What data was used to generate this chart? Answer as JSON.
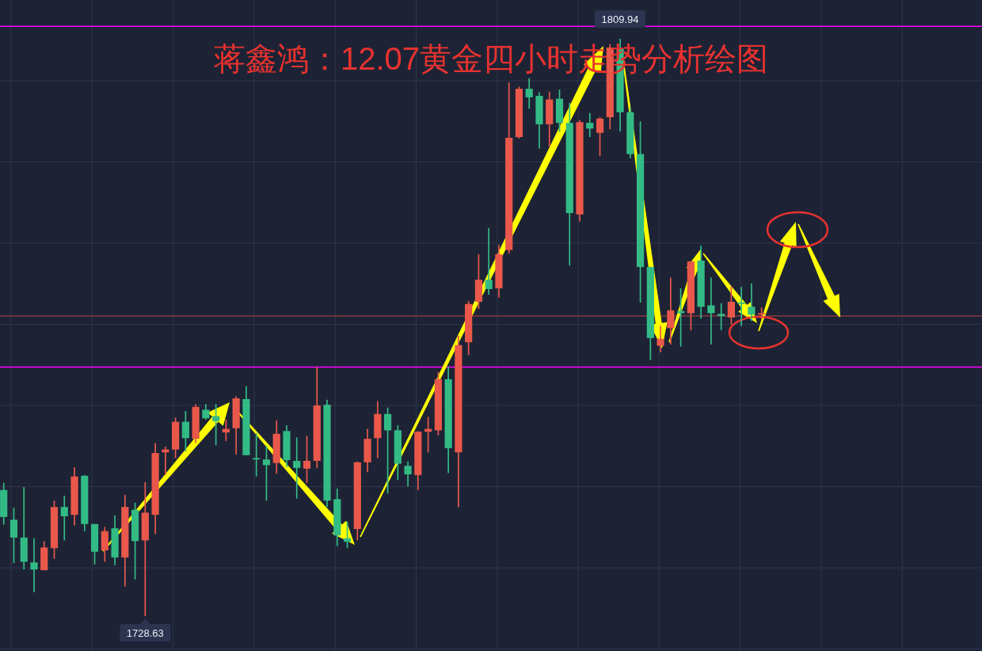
{
  "chart_data": {
    "type": "candlestick",
    "title": "蒋鑫鸿：12.07黄金四小时走势分析绘图",
    "categories": [
      null,
      null,
      null,
      null,
      null,
      null,
      null,
      null,
      null,
      null,
      null,
      null,
      null,
      null,
      null,
      null,
      null,
      null,
      null,
      null,
      null,
      null,
      null,
      null,
      null,
      null,
      null,
      null,
      null,
      null,
      null,
      null,
      null,
      null,
      null,
      null,
      null,
      null,
      null,
      null,
      null,
      null,
      null,
      null,
      null,
      null,
      null,
      null,
      null,
      null,
      null,
      null,
      null,
      null,
      null,
      null,
      null,
      null,
      null,
      null,
      null,
      null,
      null,
      null,
      null,
      null,
      null,
      null,
      null,
      null,
      null,
      null,
      null,
      null,
      null,
      null
    ],
    "ohlc": [
      [
        1746.4,
        1747.4,
        1741.5,
        1742.6
      ],
      [
        1742.2,
        1743.9,
        1736.1,
        1739.7
      ],
      [
        1739.7,
        1746.8,
        1735.2,
        1736.3
      ],
      [
        1736.2,
        1739.6,
        1732.0,
        1735.2
      ],
      [
        1735.1,
        1739.2,
        1735.1,
        1738.3
      ],
      [
        1738.2,
        1744.9,
        1736.7,
        1744.0
      ],
      [
        1744.0,
        1745.6,
        1739.3,
        1742.7
      ],
      [
        1742.9,
        1749.6,
        1741.4,
        1748.3
      ],
      [
        1748.4,
        1748.5,
        1740.6,
        1741.6
      ],
      [
        1741.6,
        1741.6,
        1735.9,
        1737.7
      ],
      [
        1737.9,
        1741.2,
        1736.3,
        1740.6
      ],
      [
        1741.0,
        1742.8,
        1735.8,
        1736.9
      ],
      [
        1736.9,
        1745.7,
        1732.8,
        1744.0
      ],
      [
        1743.6,
        1744.6,
        1733.8,
        1739.2
      ],
      [
        1739.3,
        1747.5,
        1728.63,
        1743.2
      ],
      [
        1742.9,
        1753.0,
        1740.2,
        1751.6
      ],
      [
        1751.7,
        1752.5,
        1748.5,
        1752.1
      ],
      [
        1752.1,
        1756.6,
        1750.9,
        1756.0
      ],
      [
        1756.0,
        1757.5,
        1751.8,
        1753.7
      ],
      [
        1753.6,
        1758.5,
        1753.0,
        1758.1
      ],
      [
        1757.7,
        1758.5,
        1756.3,
        1756.5
      ],
      [
        1756.8,
        1758.5,
        1752.7,
        1756.1
      ],
      [
        1754.5,
        1756.3,
        1753.3,
        1755.0
      ],
      [
        1755.1,
        1759.6,
        1751.4,
        1759.3
      ],
      [
        1759.2,
        1761.0,
        1751.3,
        1751.3
      ],
      [
        1750.9,
        1754.4,
        1748.3,
        1750.7
      ],
      [
        1750.7,
        1752.6,
        1744.9,
        1749.9
      ],
      [
        1750.2,
        1756.2,
        1748.7,
        1754.3
      ],
      [
        1754.7,
        1755.5,
        1749.6,
        1750.6
      ],
      [
        1750.5,
        1753.8,
        1745.2,
        1749.5
      ],
      [
        1749.4,
        1754.0,
        1747.4,
        1750.5
      ],
      [
        1750.5,
        1763.7,
        1749.5,
        1758.3
      ],
      [
        1758.4,
        1759.1,
        1744.0,
        1744.9
      ],
      [
        1745.1,
        1746.6,
        1738.5,
        1740.0
      ],
      [
        1739.6,
        1741.9,
        1738.2,
        1739.1
      ],
      [
        1740.9,
        1750.4,
        1739.3,
        1750.3
      ],
      [
        1750.3,
        1755.0,
        1748.9,
        1753.6
      ],
      [
        1753.7,
        1758.9,
        1750.9,
        1757.1
      ],
      [
        1757.1,
        1758.0,
        1745.9,
        1754.8
      ],
      [
        1754.8,
        1755.5,
        1747.8,
        1750.1
      ],
      [
        1749.8,
        1750.4,
        1746.9,
        1748.6
      ],
      [
        1748.5,
        1754.7,
        1746.4,
        1754.6
      ],
      [
        1754.6,
        1756.7,
        1751.7,
        1755.0
      ],
      [
        1754.8,
        1763.0,
        1754.1,
        1762.0
      ],
      [
        1762.0,
        1763.8,
        1748.8,
        1752.3
      ],
      [
        1751.7,
        1768.1,
        1744.0,
        1766.8
      ],
      [
        1767.2,
        1773.0,
        1765.4,
        1772.6
      ],
      [
        1772.9,
        1779.6,
        1771.9,
        1776.0
      ],
      [
        1776.0,
        1783.3,
        1773.9,
        1774.7
      ],
      [
        1774.8,
        1780.9,
        1773.5,
        1779.6
      ],
      [
        1780.2,
        1803.8,
        1779.7,
        1796.0
      ],
      [
        1796.1,
        1803.2,
        1795.9,
        1802.9
      ],
      [
        1802.9,
        1804.4,
        1800.1,
        1801.7
      ],
      [
        1801.9,
        1802.4,
        1794.5,
        1797.9
      ],
      [
        1797.9,
        1802.5,
        1794.8,
        1801.4
      ],
      [
        1801.5,
        1802.8,
        1796.8,
        1798.1
      ],
      [
        1798.1,
        1800.9,
        1778.0,
        1785.4
      ],
      [
        1785.2,
        1798.5,
        1784.2,
        1798.2
      ],
      [
        1798.1,
        1799.5,
        1796.1,
        1797.3
      ],
      [
        1796.7,
        1798.9,
        1793.4,
        1798.7
      ],
      [
        1798.9,
        1809.2,
        1797.2,
        1808.7
      ],
      [
        1808.6,
        1809.94,
        1796.9,
        1799.6
      ],
      [
        1799.6,
        1800.2,
        1793.1,
        1793.7
      ],
      [
        1793.7,
        1798.3,
        1772.8,
        1777.8
      ],
      [
        1777.8,
        1777.8,
        1764.7,
        1767.8
      ],
      [
        1766.7,
        1769.5,
        1765.8,
        1767.7
      ],
      [
        1769.2,
        1776.3,
        1766.9,
        1771.7
      ],
      [
        1771.6,
        1774.8,
        1766.6,
        1771.3
      ],
      [
        1771.3,
        1778.6,
        1768.9,
        1778.6
      ],
      [
        1778.7,
        1780.8,
        1770.5,
        1772.2
      ],
      [
        1772.4,
        1776.3,
        1766.9,
        1771.3
      ],
      [
        1771.2,
        1772.7,
        1768.9,
        1770.9
      ],
      [
        1770.7,
        1775.1,
        1769.7,
        1772.9
      ],
      [
        1772.8,
        1775.0,
        1769.5,
        1772.6
      ],
      [
        1772.2,
        1775.5,
        1770.2,
        1771.1
      ],
      [
        1771.1,
        1772.1,
        1770.5,
        1771.3
      ]
    ],
    "colors": [
      "#33bb85",
      "#33bb85",
      "#33bb85",
      "#33bb85",
      "#e9584a",
      "#e9584a",
      "#33bb85",
      "#e9584a",
      "#33bb85",
      "#33bb85",
      "#e9584a",
      "#33bb85",
      "#e9584a",
      "#33bb85",
      "#e9584a",
      "#e9584a",
      "#e9584a",
      "#e9584a",
      "#33bb85",
      "#e9584a",
      "#33bb85",
      "#33bb85",
      "#e9584a",
      "#e9584a",
      "#33bb85",
      "#33bb85",
      "#33bb85",
      "#e9584a",
      "#33bb85",
      "#33bb85",
      "#e9584a",
      "#e9584a",
      "#33bb85",
      "#33bb85",
      "#33bb85",
      "#e9584a",
      "#e9584a",
      "#e9584a",
      "#33bb85",
      "#33bb85",
      "#33bb85",
      "#e9584a",
      "#e9584a",
      "#e9584a",
      "#33bb85",
      "#e9584a",
      "#e9584a",
      "#e9584a",
      "#33bb85",
      "#e9584a",
      "#e9584a",
      "#e9584a",
      "#33bb85",
      "#33bb85",
      "#e9584a",
      "#33bb85",
      "#33bb85",
      "#e9584a",
      "#33bb85",
      "#e9584a",
      "#e9584a",
      "#33bb85",
      "#33bb85",
      "#33bb85",
      "#33bb85",
      "#e9584a",
      "#e9584a",
      "#33bb85",
      "#e9584a",
      "#33bb85",
      "#33bb85",
      "#33bb85",
      "#e9584a",
      "#33bb85",
      "#33bb85",
      "#e9584a"
    ],
    "ref_lines": [
      {
        "axis": "y",
        "value": 1811.7,
        "color": "#ff00ff"
      },
      {
        "axis": "y",
        "value": 1763.7,
        "color": "#ff00ff"
      },
      {
        "axis": "y",
        "value": 1770.9,
        "color": "#8a3a3e"
      }
    ],
    "annotations": [
      {
        "text": "1809.94",
        "y": 1809.94
      },
      {
        "text": "1728.63",
        "y": 1728.63
      }
    ],
    "grid": true
  }
}
